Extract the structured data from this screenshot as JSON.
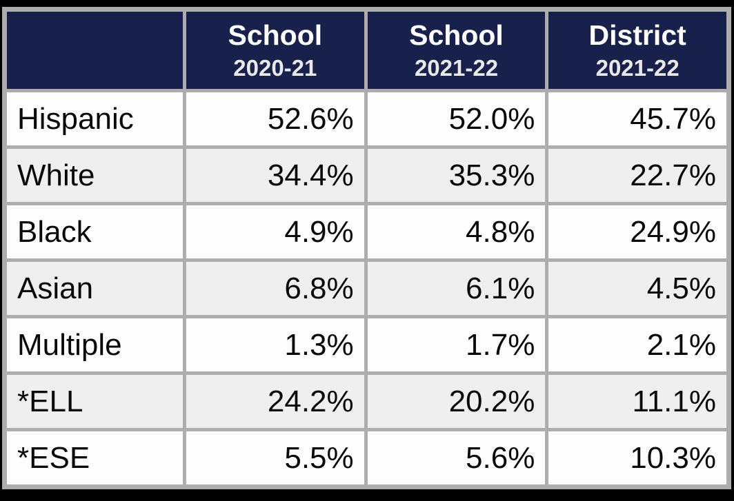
{
  "table": {
    "columns": [
      {
        "line1": "",
        "line2": ""
      },
      {
        "line1": "School",
        "line2": "2020-21"
      },
      {
        "line1": "School",
        "line2": "2021-22"
      },
      {
        "line1": "District",
        "line2": "2021-22"
      }
    ],
    "rows": [
      {
        "label": "Hispanic",
        "values": [
          "52.6%",
          "52.0%",
          "45.7%"
        ]
      },
      {
        "label": "White",
        "values": [
          "34.4%",
          "35.3%",
          "22.7%"
        ]
      },
      {
        "label": "Black",
        "values": [
          "4.9%",
          "4.8%",
          "24.9%"
        ]
      },
      {
        "label": "Asian",
        "values": [
          "6.8%",
          "6.1%",
          "4.5%"
        ]
      },
      {
        "label": "Multiple",
        "values": [
          "1.3%",
          "1.7%",
          "2.1%"
        ]
      },
      {
        "label": "*ELL",
        "values": [
          "24.2%",
          "20.2%",
          "11.1%"
        ]
      },
      {
        "label": "*ESE",
        "values": [
          "5.5%",
          "5.6%",
          "10.3%"
        ]
      }
    ]
  },
  "colors": {
    "header_background": "#18214B",
    "header_text": "#FFFFFF",
    "border_gray": "#ADADAD",
    "row_white": "#FDFDFD",
    "row_alt_gray": "#EFEFEF",
    "body_text": "#0A0A0A",
    "page_background": "#000000"
  },
  "chart_data": {
    "type": "table",
    "title": "School demographics comparison",
    "categories": [
      "Hispanic",
      "White",
      "Black",
      "Asian",
      "Multiple",
      "*ELL",
      "*ESE"
    ],
    "series": [
      {
        "name": "School 2020-21",
        "values": [
          52.6,
          34.4,
          4.9,
          6.8,
          1.3,
          24.2,
          5.5
        ]
      },
      {
        "name": "School 2021-22",
        "values": [
          52.0,
          35.3,
          4.8,
          6.1,
          1.7,
          20.2,
          5.6
        ]
      },
      {
        "name": "District 2021-22",
        "values": [
          45.7,
          22.7,
          24.9,
          4.5,
          2.1,
          11.1,
          10.3
        ]
      }
    ],
    "unit": "%"
  }
}
